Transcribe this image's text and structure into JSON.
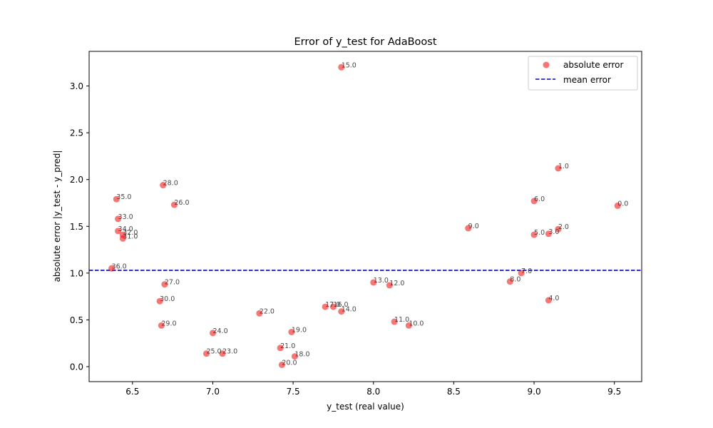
{
  "chart_data": {
    "type": "scatter",
    "title": "Error of y_test for AdaBoost",
    "xlabel": "y_test (real value)",
    "ylabel": "absolute error |y_test - y_pred|",
    "xlim": [
      6.23,
      9.67
    ],
    "ylim": [
      -0.16,
      3.37
    ],
    "xticks": [
      6.5,
      7.0,
      7.5,
      8.0,
      8.5,
      9.0,
      9.5
    ],
    "yticks": [
      0.0,
      0.5,
      1.0,
      1.5,
      2.0,
      2.5,
      3.0
    ],
    "xtick_labels": [
      "6.5",
      "7.0",
      "7.5",
      "8.0",
      "8.5",
      "9.0",
      "9.5"
    ],
    "ytick_labels": [
      "0.0",
      "0.5",
      "1.0",
      "1.5",
      "2.0",
      "2.5",
      "3.0"
    ],
    "grid": false,
    "legend_position": "top-right",
    "colors": {
      "points": "#ff0000",
      "mean_line": "#0000cc"
    },
    "series": [
      {
        "name": "absolute error",
        "kind": "scatter",
        "points": [
          {
            "x": 9.52,
            "y": 1.72,
            "label": "0.0"
          },
          {
            "x": 9.15,
            "y": 2.12,
            "label": "1.0"
          },
          {
            "x": 9.15,
            "y": 1.47,
            "label": "2.0"
          },
          {
            "x": 9.09,
            "y": 1.42,
            "label": "3.0"
          },
          {
            "x": 9.09,
            "y": 0.71,
            "label": "4.0"
          },
          {
            "x": 9.0,
            "y": 1.41,
            "label": "5.0"
          },
          {
            "x": 9.0,
            "y": 1.77,
            "label": "6.0"
          },
          {
            "x": 8.92,
            "y": 1.0,
            "label": "7.0"
          },
          {
            "x": 8.85,
            "y": 0.91,
            "label": "8.0"
          },
          {
            "x": 8.59,
            "y": 1.48,
            "label": "9.0"
          },
          {
            "x": 8.22,
            "y": 0.44,
            "label": "10.0"
          },
          {
            "x": 8.13,
            "y": 0.48,
            "label": "11.0"
          },
          {
            "x": 8.1,
            "y": 0.87,
            "label": "12.0"
          },
          {
            "x": 8.0,
            "y": 0.9,
            "label": "13.0"
          },
          {
            "x": 7.8,
            "y": 0.59,
            "label": "14.0"
          },
          {
            "x": 7.8,
            "y": 3.2,
            "label": "15.0"
          },
          {
            "x": 7.75,
            "y": 0.64,
            "label": "16.0"
          },
          {
            "x": 7.7,
            "y": 0.64,
            "label": "17.0"
          },
          {
            "x": 7.51,
            "y": 0.11,
            "label": "18.0"
          },
          {
            "x": 7.49,
            "y": 0.37,
            "label": "19.0"
          },
          {
            "x": 7.43,
            "y": 0.02,
            "label": "20.0"
          },
          {
            "x": 7.42,
            "y": 0.2,
            "label": "21.0"
          },
          {
            "x": 7.29,
            "y": 0.57,
            "label": "22.0"
          },
          {
            "x": 7.06,
            "y": 0.14,
            "label": "23.0"
          },
          {
            "x": 7.0,
            "y": 0.36,
            "label": "24.0"
          },
          {
            "x": 6.96,
            "y": 0.14,
            "label": "25.0"
          },
          {
            "x": 6.76,
            "y": 1.73,
            "label": "26.0"
          },
          {
            "x": 6.7,
            "y": 0.88,
            "label": "27.0"
          },
          {
            "x": 6.69,
            "y": 1.94,
            "label": "28.0"
          },
          {
            "x": 6.68,
            "y": 0.44,
            "label": "29.0"
          },
          {
            "x": 6.67,
            "y": 0.7,
            "label": "30.0"
          },
          {
            "x": 6.44,
            "y": 1.37,
            "label": "31.0"
          },
          {
            "x": 6.44,
            "y": 1.41,
            "label": "32.0"
          },
          {
            "x": 6.41,
            "y": 1.58,
            "label": "33.0"
          },
          {
            "x": 6.41,
            "y": 1.45,
            "label": "34.0"
          },
          {
            "x": 6.4,
            "y": 1.79,
            "label": "35.0"
          },
          {
            "x": 6.37,
            "y": 1.05,
            "label": "36.0"
          }
        ]
      },
      {
        "name": "mean error",
        "kind": "hline",
        "y": 1.03
      }
    ]
  }
}
